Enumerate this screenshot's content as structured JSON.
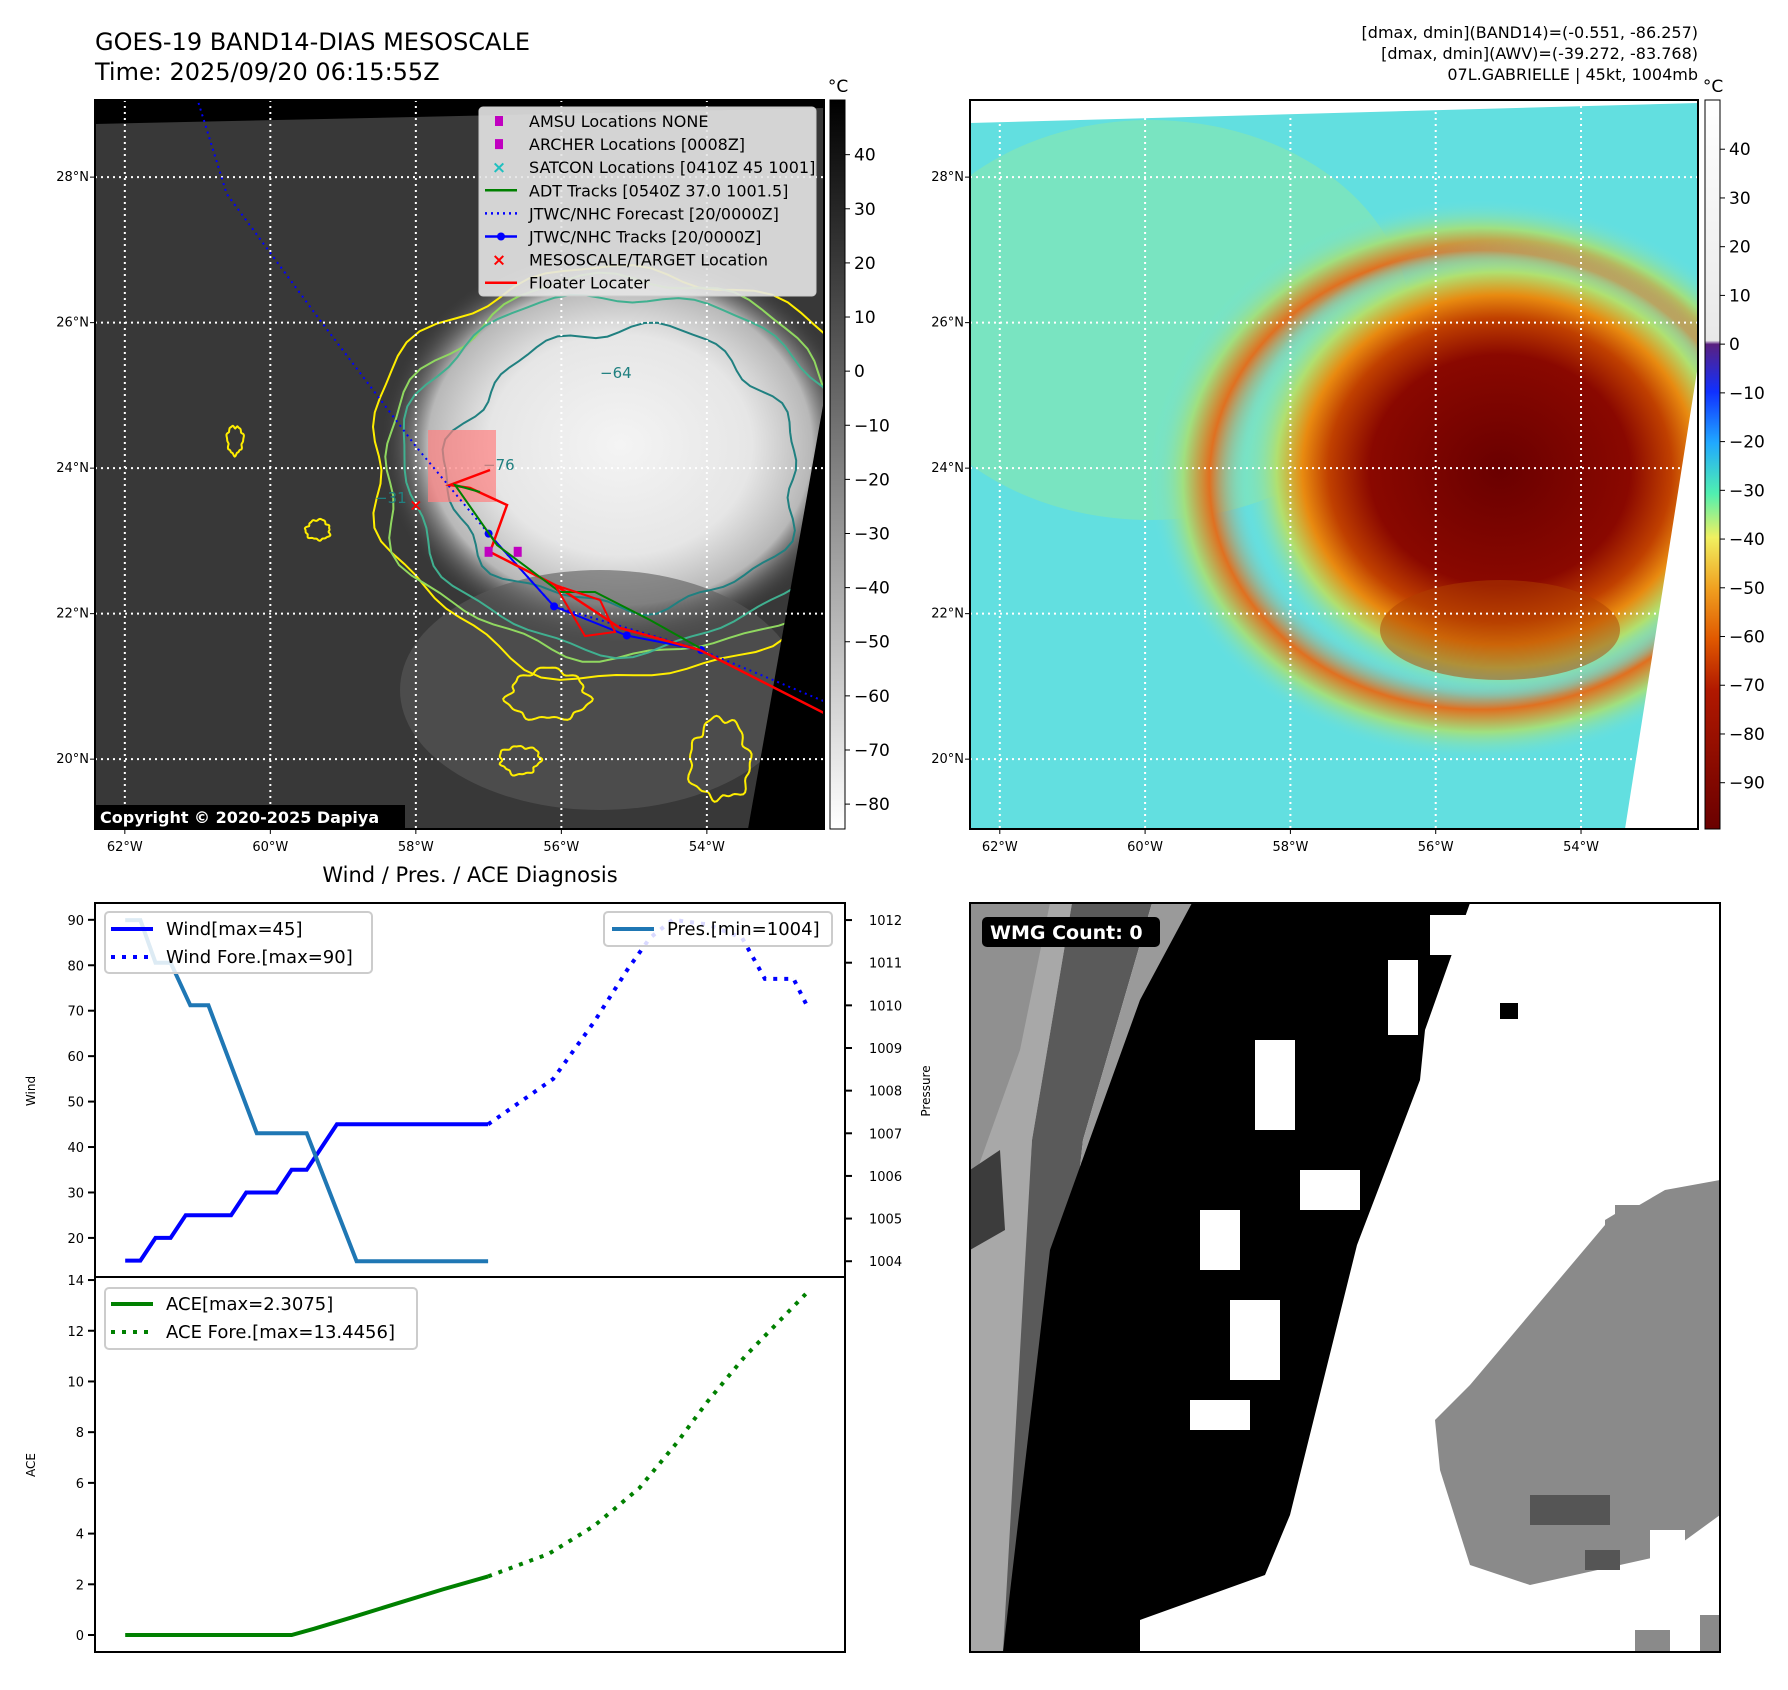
{
  "header": {
    "title_line1": "GOES-19 BAND14-DIAS MESOSCALE",
    "title_line2": "Time: 2025/09/20 06:15:55Z",
    "info_line1": "[dmax, dmin](BAND14)=(-0.551, -86.257)",
    "info_line2": "[dmax, dmin](AWV)=(-39.272, -83.768)",
    "info_line3": "07L.GABRIELLE | 45kt, 1004mb",
    "copyright": "Copyright © 2020-2025 Dapiya",
    "colorbar_unit": "°C"
  },
  "map_legend": [
    {
      "label": "AMSU Locations NONE",
      "marker": "square",
      "color": "#c000c0"
    },
    {
      "label": "ARCHER Locations [0008Z]",
      "marker": "square",
      "color": "#c000c0"
    },
    {
      "label": "SATCON Locations [0410Z 45 1001]",
      "marker": "x",
      "color": "#20c0c0"
    },
    {
      "label": "ADT Tracks [0540Z 37.0 1001.5]",
      "marker": "line",
      "color": "#008000"
    },
    {
      "label": "JTWC/NHC Forecast [20/0000Z]",
      "marker": "dotted",
      "color": "#0000ff"
    },
    {
      "label": "JTWC/NHC Tracks [20/0000Z]",
      "marker": "line-dot",
      "color": "#0000ff"
    },
    {
      "label": "MESOSCALE/TARGET Location",
      "marker": "x",
      "color": "#ff0000"
    },
    {
      "label": "Floater Locater",
      "marker": "line",
      "color": "#ff0000"
    }
  ],
  "chart_data": [
    {
      "type": "heatmap",
      "title": "GOES-19 BAND14-DIAS MESOSCALE",
      "lat_ticks": [
        {
          "v": 28,
          "label": "28°N"
        },
        {
          "v": 26,
          "label": "26°N"
        },
        {
          "v": 24,
          "label": "24°N"
        },
        {
          "v": 22,
          "label": "22°N"
        },
        {
          "v": 20,
          "label": "20°N"
        }
      ],
      "lon_ticks": [
        {
          "v": -62,
          "label": "62°W"
        },
        {
          "v": -60,
          "label": "60°W"
        },
        {
          "v": -58,
          "label": "58°W"
        },
        {
          "v": -56,
          "label": "56°W"
        },
        {
          "v": -54,
          "label": "54°W"
        }
      ],
      "lon_range": [
        -62.41,
        -52.39
      ],
      "lat_range": [
        19.04,
        29.06
      ],
      "colorbar": {
        "range": [
          -84.6,
          50.1
        ],
        "ticks": [
          40,
          30,
          20,
          10,
          0,
          -10,
          -20,
          -30,
          -40,
          -50,
          -60,
          -70,
          -80
        ],
        "tick_labels": [
          "40",
          "30",
          "20",
          "10",
          "0",
          "−10",
          "−20",
          "−30",
          "−40",
          "−50",
          "−60",
          "−70",
          "−80"
        ]
      },
      "contour_labels": [
        "−64",
        "−76",
        "−31"
      ],
      "jtwc_track": [
        [
          -54.08,
          21.5
        ],
        [
          -55.1,
          21.7
        ],
        [
          -56.1,
          22.1
        ],
        [
          -57.0,
          23.1
        ]
      ],
      "jtwc_forecast": [
        [
          -52.4,
          20.8
        ],
        [
          -54.08,
          21.5
        ],
        [
          -56.1,
          22.1
        ],
        [
          -57.0,
          23.1
        ],
        [
          -58.0,
          24.3
        ],
        [
          -59.33,
          26.05
        ],
        [
          -60.6,
          27.77
        ],
        [
          -61.0,
          29.06
        ]
      ],
      "archer_locations": [
        [
          -57.0,
          22.85
        ],
        [
          -56.6,
          22.85
        ]
      ],
      "target_location": [
        -58.0,
        23.5
      ]
    },
    {
      "type": "heatmap",
      "lat_ticks": [
        {
          "v": 28,
          "label": "28°N"
        },
        {
          "v": 26,
          "label": "26°N"
        },
        {
          "v": 24,
          "label": "24°N"
        },
        {
          "v": 22,
          "label": "22°N"
        },
        {
          "v": 20,
          "label": "20°N"
        }
      ],
      "lon_ticks": [
        {
          "v": -62,
          "label": "62°W"
        },
        {
          "v": -60,
          "label": "60°W"
        },
        {
          "v": -58,
          "label": "58°W"
        },
        {
          "v": -56,
          "label": "56°W"
        },
        {
          "v": -54,
          "label": "54°W"
        }
      ],
      "colorbar": {
        "range": [
          -99.5,
          50.1
        ],
        "ticks": [
          40,
          30,
          20,
          10,
          0,
          -10,
          -20,
          -30,
          -40,
          -50,
          -60,
          -70,
          -80,
          -90
        ],
        "tick_labels": [
          "40",
          "30",
          "20",
          "10",
          "0",
          "−10",
          "−20",
          "−30",
          "−40",
          "−50",
          "−60",
          "−70",
          "−80",
          "−90"
        ]
      }
    },
    {
      "type": "line",
      "title": "Wind / Pres. / ACE Diagnosis",
      "xlim": [
        -2,
        47.6
      ],
      "ylabel": "Wind",
      "ylabel_right": "Pressure",
      "ylim": [
        11.4,
        93.7
      ],
      "ylim_right": [
        1003.63,
        1012.4
      ],
      "yticks": [
        20,
        30,
        40,
        50,
        60,
        70,
        80,
        90
      ],
      "yticks_right": [
        1004,
        1005,
        1006,
        1007,
        1008,
        1009,
        1010,
        1011,
        1012
      ],
      "series": [
        {
          "name": "Wind[max=45]",
          "style": "solid",
          "color": "#0000ff",
          "axis": "left",
          "points": [
            [
              0,
              15
            ],
            [
              1,
              15
            ],
            [
              2,
              20
            ],
            [
              3,
              20
            ],
            [
              4,
              25
            ],
            [
              7,
              25
            ],
            [
              8,
              30
            ],
            [
              10,
              30
            ],
            [
              11,
              35
            ],
            [
              12,
              35
            ],
            [
              14,
              45
            ],
            [
              24,
              45
            ]
          ]
        },
        {
          "name": "Wind Fore.[max=90]",
          "style": "dotted",
          "color": "#0000ff",
          "axis": "left",
          "points": [
            [
              24,
              45
            ],
            [
              28.3,
              55
            ],
            [
              31,
              67.5
            ],
            [
              33.2,
              79
            ],
            [
              34.7,
              86
            ],
            [
              36.2,
              90
            ],
            [
              38.5,
              89
            ],
            [
              40.8,
              86
            ],
            [
              42.3,
              77
            ],
            [
              44.2,
              77
            ],
            [
              45.1,
              71
            ]
          ]
        },
        {
          "name": "Pres.[min=1004]",
          "style": "solid",
          "color": "#1f77b4",
          "axis": "right",
          "points": [
            [
              0,
              1012
            ],
            [
              1,
              1012
            ],
            [
              2,
              1011
            ],
            [
              3,
              1011
            ],
            [
              4.3,
              1010
            ],
            [
              5.5,
              1010
            ],
            [
              8.7,
              1007
            ],
            [
              12,
              1007
            ],
            [
              15.3,
              1004
            ],
            [
              24,
              1004
            ]
          ]
        }
      ]
    },
    {
      "type": "line",
      "xlim": [
        -2,
        47.6
      ],
      "ylabel": "ACE",
      "ylim": [
        -0.67,
        14.12
      ],
      "yticks": [
        0,
        2,
        4,
        6,
        8,
        10,
        12,
        14
      ],
      "series": [
        {
          "name": "ACE[max=2.3075]",
          "style": "solid",
          "color": "#008000",
          "points": [
            [
              0,
              0
            ],
            [
              11,
              0
            ],
            [
              12.5,
              0.25
            ],
            [
              15,
              0.7
            ],
            [
              18,
              1.25
            ],
            [
              21,
              1.8
            ],
            [
              24,
              2.31
            ]
          ]
        },
        {
          "name": "ACE Fore.[max=13.4456]",
          "style": "dotted",
          "color": "#008000",
          "points": [
            [
              24,
              2.31
            ],
            [
              28,
              3.2
            ],
            [
              31,
              4.3
            ],
            [
              34,
              5.8
            ],
            [
              36.5,
              7.6
            ],
            [
              38.5,
              9.2
            ],
            [
              41,
              11
            ],
            [
              45,
              13.45
            ]
          ]
        }
      ]
    },
    {
      "type": "heatmap",
      "label": "WMG Count: 0"
    }
  ]
}
